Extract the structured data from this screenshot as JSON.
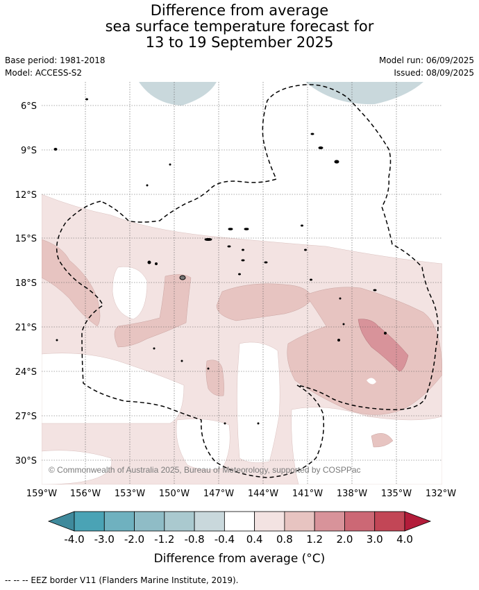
{
  "title": {
    "line1": "Difference from average",
    "line2": "sea surface temperature forecast for",
    "line3": "13 to 19 September 2025"
  },
  "meta": {
    "base_period": "Base period: 1981-2018",
    "model": "Model: ACCESS-S2",
    "model_run": "Model run: 06/09/2025",
    "issued": "Issued: 08/09/2025"
  },
  "map": {
    "lat_labels": [
      "6°S",
      "9°S",
      "12°S",
      "15°S",
      "18°S",
      "21°S",
      "24°S",
      "27°S",
      "30°S"
    ],
    "lon_labels": [
      "159°W",
      "156°W",
      "153°W",
      "150°W",
      "147°W",
      "144°W",
      "141°W",
      "138°W",
      "135°W",
      "132°W"
    ],
    "copyright": "© Commonwealth of Australia 2025, Bureau of Meteorology, supported by COSPPac",
    "gridlines": true,
    "eez_style": "dashed"
  },
  "colorbar": {
    "ticks": [
      "-4.0",
      "-3.0",
      "-2.0",
      "-1.2",
      "-0.8",
      "-0.4",
      "0.4",
      "0.8",
      "1.2",
      "2.0",
      "3.0",
      "4.0"
    ],
    "colors": [
      "#3f8a9c",
      "#4aa3b5",
      "#6fb1bf",
      "#8fbcc6",
      "#aac9cf",
      "#c9d8dc",
      "#ffffff",
      "#f3e3e2",
      "#e7c4c1",
      "#d8939a",
      "#cc6875",
      "#c24656",
      "#b31c3a"
    ],
    "label": "Difference from average (°C)"
  },
  "footer": "--  --  -- EEZ border V11 (Flanders Marine Institute, 2019)."
}
